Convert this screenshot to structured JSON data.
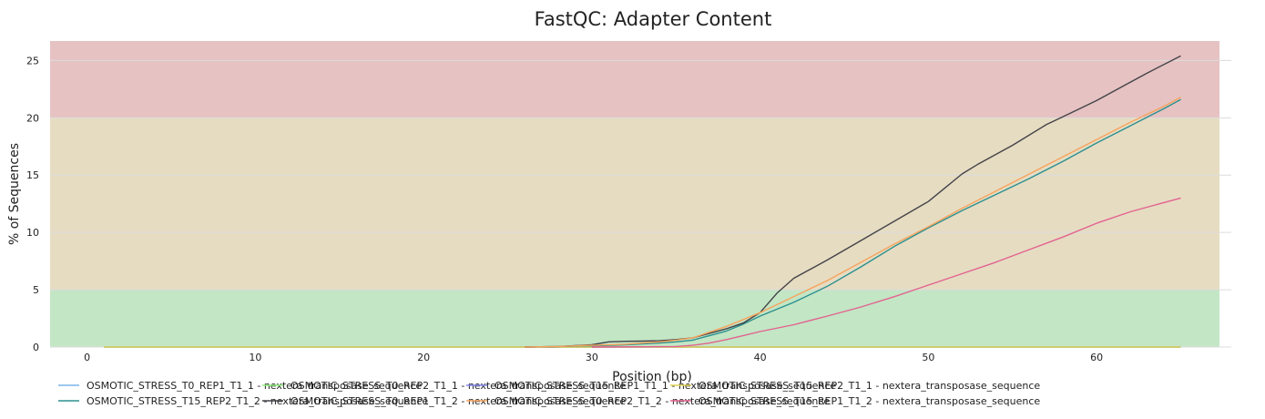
{
  "chart_data": {
    "type": "line",
    "title": "FastQC: Adapter Content",
    "xlabel": "Position (bp)",
    "ylabel": "% of Sequences",
    "xlim": [
      -2.2,
      67.3
    ],
    "ylim": [
      0,
      26.7
    ],
    "x_ticks": [
      0,
      10,
      20,
      30,
      40,
      50,
      60
    ],
    "y_ticks": [
      0,
      5,
      10,
      15,
      20,
      25
    ],
    "grid": true,
    "legend_position": "bottom",
    "bands": [
      {
        "from": 0,
        "to": 5,
        "color": "#c3e6c5"
      },
      {
        "from": 5,
        "to": 20,
        "color": "#e6dcc2"
      },
      {
        "from": 20,
        "to": 26.7,
        "color": "#e6c2c2"
      }
    ],
    "series": [
      {
        "name": "OSMOTIC_STRESS_T0_REP1_T1_1 - nextera_transposase_sequence",
        "color": "#7cb5ec",
        "x": [
          1,
          25,
          30,
          35,
          40,
          45,
          50,
          55,
          60,
          65
        ],
        "y": [
          0,
          0,
          0,
          0,
          0,
          0,
          0,
          0,
          0,
          0
        ]
      },
      {
        "name": "OSMOTIC_STRESS_T0_REP2_T1_1 - nextera_transposase_sequence",
        "color": "#90ed7d",
        "x": [
          1,
          25,
          30,
          35,
          40,
          45,
          50,
          55,
          60,
          65
        ],
        "y": [
          0,
          0,
          0,
          0,
          0,
          0,
          0,
          0,
          0,
          0
        ]
      },
      {
        "name": "OSMOTIC_STRESS_T15_REP1_T1_1 - nextera_transposase_sequence",
        "color": "#8085e9",
        "x": [
          1,
          25,
          30,
          35,
          40,
          45,
          50,
          55,
          60,
          65
        ],
        "y": [
          0,
          0,
          0,
          0,
          0,
          0,
          0,
          0,
          0,
          0
        ]
      },
      {
        "name": "OSMOTIC_STRESS_T15_REP2_T1_1 - nextera_transposase_sequence",
        "color": "#e4d354",
        "x": [
          1,
          25,
          30,
          35,
          40,
          45,
          50,
          55,
          60,
          65
        ],
        "y": [
          0,
          0,
          0,
          0,
          0,
          0,
          0,
          0,
          0,
          0
        ]
      },
      {
        "name": "OSMOTIC_STRESS_T15_REP2_T1_2 - nextera_transposase_sequence",
        "color": "#2b908f",
        "x": [
          26,
          28,
          30,
          32,
          34,
          35,
          36,
          37,
          38,
          39,
          40,
          42,
          44,
          46,
          48,
          50,
          52,
          54,
          56,
          58,
          60,
          62,
          64,
          65
        ],
        "y": [
          0,
          0.05,
          0.1,
          0.2,
          0.35,
          0.45,
          0.6,
          1.0,
          1.4,
          2.0,
          2.7,
          3.9,
          5.3,
          7.0,
          8.8,
          10.4,
          11.9,
          13.3,
          14.7,
          16.2,
          17.8,
          19.3,
          20.8,
          21.6
        ]
      },
      {
        "name": "OSMOTIC_STRESS_T0_REP1_T1_2 - nextera_transposase_sequence",
        "color": "#434348",
        "x": [
          26,
          28,
          30,
          31,
          32,
          33,
          34,
          35,
          36,
          37,
          38,
          39,
          40,
          41,
          42,
          44,
          46,
          48,
          50,
          51,
          52,
          53,
          55,
          57,
          58,
          59,
          60,
          62,
          63,
          65
        ],
        "y": [
          0,
          0.05,
          0.2,
          0.45,
          0.5,
          0.52,
          0.55,
          0.65,
          0.8,
          1.2,
          1.6,
          2.1,
          3.0,
          4.7,
          6.0,
          7.6,
          9.3,
          11.0,
          12.7,
          13.9,
          15.1,
          16.0,
          17.6,
          19.4,
          20.1,
          20.8,
          21.5,
          23.1,
          23.9,
          25.4
        ]
      },
      {
        "name": "OSMOTIC_STRESS_T0_REP2_T1_2 - nextera_transposase_sequence",
        "color": "#f7a35c",
        "x": [
          26,
          28,
          30,
          32,
          34,
          35,
          36,
          37,
          38,
          39,
          40,
          42,
          44,
          46,
          48,
          50,
          52,
          54,
          56,
          58,
          60,
          62,
          64,
          65
        ],
        "y": [
          0,
          0.05,
          0.15,
          0.25,
          0.45,
          0.6,
          0.8,
          1.3,
          1.8,
          2.4,
          3.0,
          4.4,
          5.8,
          7.4,
          9.0,
          10.5,
          12.1,
          13.6,
          15.1,
          16.6,
          18.1,
          19.6,
          21.0,
          21.8
        ]
      },
      {
        "name": "OSMOTIC_STRESS_T15_REP1_T1_2 - nextera_transposase_sequence",
        "color": "#e3628f",
        "x": [
          30,
          33,
          35,
          36,
          37,
          38,
          39,
          40,
          42,
          44,
          46,
          48,
          50,
          52,
          54,
          56,
          58,
          60,
          62,
          64,
          65
        ],
        "y": [
          0,
          0.02,
          0.05,
          0.15,
          0.35,
          0.65,
          1.0,
          1.35,
          1.95,
          2.7,
          3.5,
          4.4,
          5.4,
          6.4,
          7.4,
          8.5,
          9.6,
          10.8,
          11.8,
          12.6,
          13.0
        ]
      }
    ]
  }
}
